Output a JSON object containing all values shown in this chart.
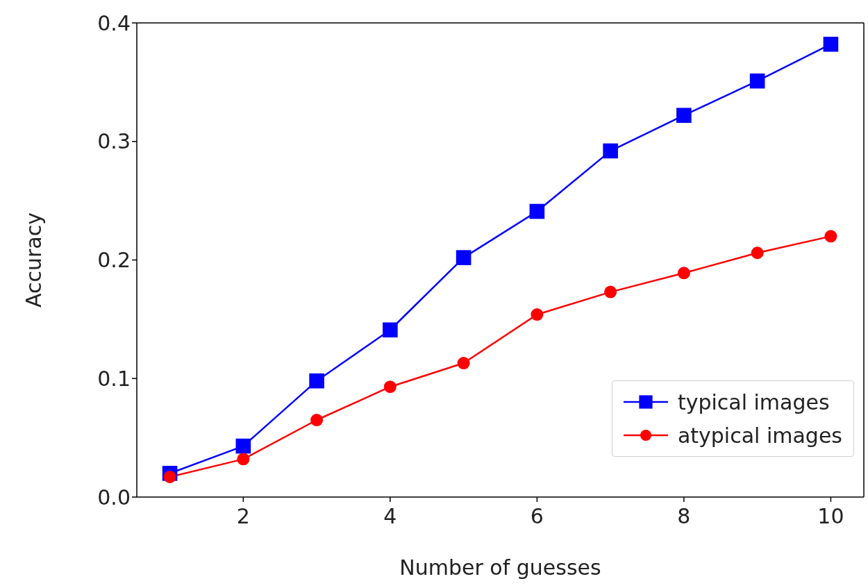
{
  "chart_data": {
    "type": "line",
    "xlabel": "Number of guesses",
    "ylabel": "Accuracy",
    "x": [
      1,
      2,
      3,
      4,
      5,
      6,
      7,
      8,
      9,
      10
    ],
    "series": [
      {
        "name": "typical images",
        "color": "#0000ff",
        "marker": "square",
        "values": [
          0.02,
          0.043,
          0.098,
          0.141,
          0.202,
          0.241,
          0.292,
          0.322,
          0.351,
          0.382
        ]
      },
      {
        "name": "atypical images",
        "color": "#ff0000",
        "marker": "circle",
        "values": [
          0.017,
          0.032,
          0.065,
          0.093,
          0.113,
          0.154,
          0.173,
          0.189,
          0.206,
          0.22
        ]
      }
    ],
    "xlim": [
      0.55,
      10.45
    ],
    "xticks": [
      2,
      4,
      6,
      8,
      10
    ],
    "ylim": [
      0,
      0.4
    ],
    "yticks": [
      {
        "value": 0,
        "label": "0.0"
      },
      {
        "value": 0.1,
        "label": "0.1"
      },
      {
        "value": 0.2,
        "label": "0.2"
      },
      {
        "value": 0.3,
        "label": "0.3"
      },
      {
        "value": 0.4,
        "label": "0.4"
      }
    ],
    "grid": false,
    "legend": "bottom right",
    "line_style": "solid"
  }
}
